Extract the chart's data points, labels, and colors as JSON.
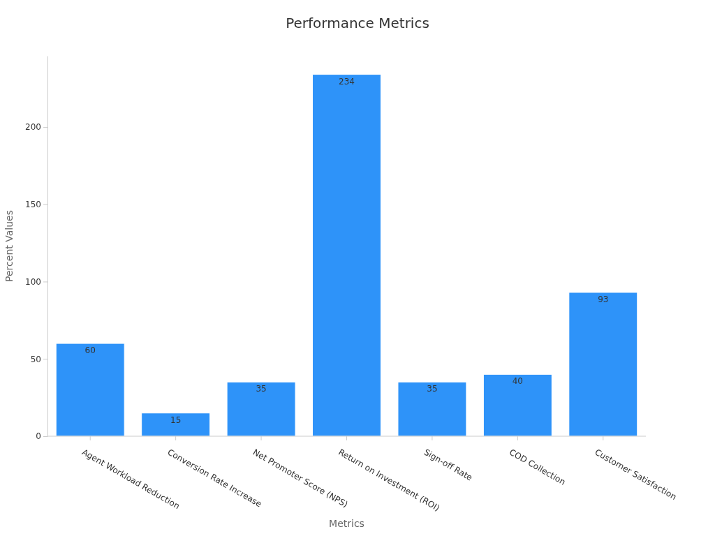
{
  "chart_data": {
    "type": "bar",
    "title": "Performance Metrics",
    "xlabel": "Metrics",
    "ylabel": "Percent Values",
    "categories": [
      "Agent Workload Reduction",
      "Conversion Rate Increase",
      "Net Promoter Score (NPS)",
      "Return on Investment (ROI)",
      "Sign-off Rate",
      "COD Collection",
      "Customer Satisfaction"
    ],
    "values": [
      60,
      15,
      35,
      234,
      35,
      40,
      93
    ],
    "color": "#2e93f9",
    "ylim": [
      0,
      246
    ],
    "yticks": [
      0,
      50,
      100,
      150,
      200
    ],
    "grid": false,
    "data_labels": true
  }
}
